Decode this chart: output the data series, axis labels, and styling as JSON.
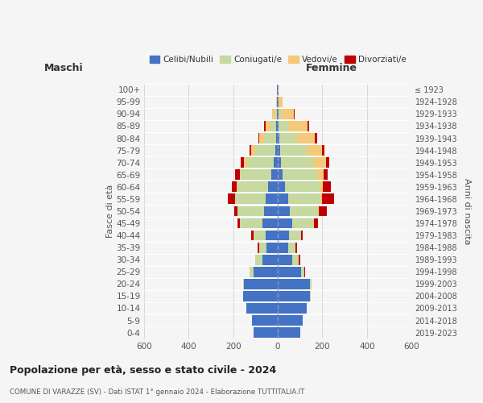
{
  "age_groups": [
    "0-4",
    "5-9",
    "10-14",
    "15-19",
    "20-24",
    "25-29",
    "30-34",
    "35-39",
    "40-44",
    "45-49",
    "50-54",
    "55-59",
    "60-64",
    "65-69",
    "70-74",
    "75-79",
    "80-84",
    "85-89",
    "90-94",
    "95-99",
    "100+"
  ],
  "birth_years": [
    "2019-2023",
    "2014-2018",
    "2009-2013",
    "2004-2008",
    "1999-2003",
    "1994-1998",
    "1989-1993",
    "1984-1988",
    "1979-1983",
    "1974-1978",
    "1969-1973",
    "1964-1968",
    "1959-1963",
    "1954-1958",
    "1949-1953",
    "1944-1948",
    "1939-1943",
    "1934-1938",
    "1929-1933",
    "1924-1928",
    "≤ 1923"
  ],
  "colors": {
    "celibi": "#4472C4",
    "coniugati": "#c5d9a0",
    "vedovi": "#f5c97a",
    "divorziati": "#c00000"
  },
  "maschi": {
    "celibi": [
      110,
      115,
      140,
      155,
      150,
      110,
      70,
      50,
      55,
      70,
      60,
      55,
      42,
      30,
      18,
      12,
      8,
      6,
      4,
      3,
      2
    ],
    "coniugati": [
      0,
      0,
      0,
      2,
      5,
      15,
      30,
      35,
      55,
      100,
      120,
      135,
      140,
      135,
      120,
      90,
      55,
      25,
      8,
      2,
      0
    ],
    "vedovi": [
      0,
      0,
      0,
      0,
      0,
      0,
      0,
      0,
      0,
      0,
      2,
      3,
      3,
      5,
      12,
      18,
      20,
      25,
      12,
      3,
      0
    ],
    "divorziati": [
      0,
      0,
      0,
      0,
      0,
      0,
      2,
      5,
      8,
      10,
      12,
      30,
      22,
      20,
      15,
      8,
      5,
      5,
      1,
      0,
      0
    ]
  },
  "femmine": {
    "celibi": [
      100,
      110,
      130,
      145,
      145,
      105,
      65,
      45,
      50,
      65,
      55,
      45,
      32,
      22,
      15,
      10,
      7,
      5,
      3,
      2,
      1
    ],
    "coniugati": [
      0,
      0,
      0,
      2,
      5,
      15,
      30,
      35,
      55,
      95,
      125,
      145,
      155,
      155,
      145,
      120,
      80,
      40,
      10,
      3,
      0
    ],
    "vedovi": [
      0,
      0,
      0,
      0,
      0,
      0,
      0,
      0,
      0,
      2,
      5,
      8,
      15,
      30,
      55,
      70,
      80,
      90,
      60,
      15,
      2
    ],
    "divorziati": [
      0,
      0,
      0,
      0,
      0,
      2,
      5,
      8,
      8,
      20,
      35,
      55,
      35,
      18,
      15,
      10,
      8,
      5,
      2,
      0,
      0
    ]
  },
  "xlim": 600,
  "title": "Popolazione per età, sesso e stato civile - 2024",
  "subtitle": "COMUNE DI VARAZZE (SV) - Dati ISTAT 1° gennaio 2024 - Elaborazione TUTTITALIA.IT",
  "ylabel": "Fasce di età",
  "ylabel_right": "Anni di nascita",
  "header_left": "Maschi",
  "header_right": "Femmine",
  "legend_labels": [
    "Celibi/Nubili",
    "Coniugati/e",
    "Vedovi/e",
    "Divorziati/e"
  ],
  "background_color": "#f5f5f5"
}
